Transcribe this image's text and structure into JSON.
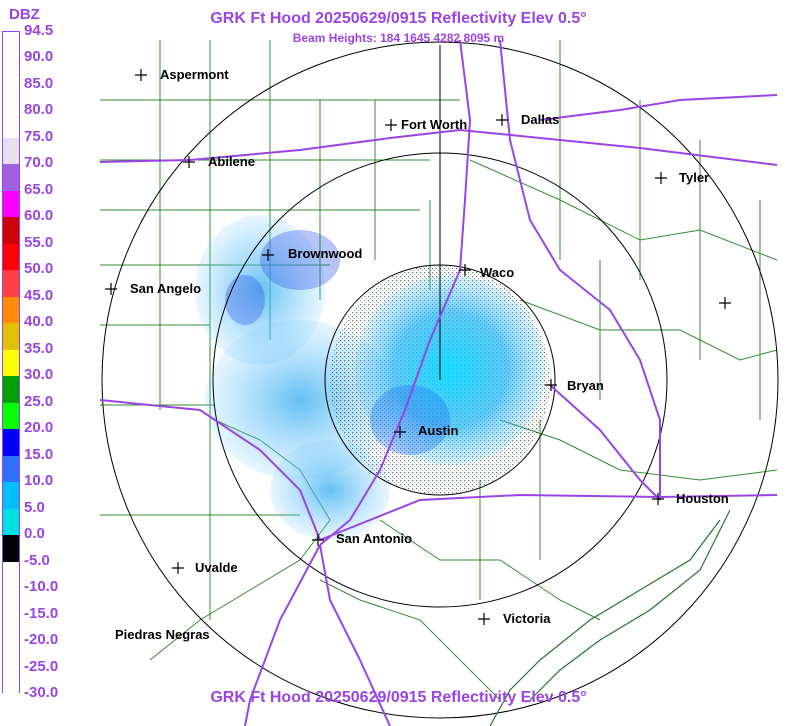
{
  "titles": {
    "top": "GRK Ft Hood 20250629/0915 Reflectivity Elev 0.5°",
    "subtitle": "Beam Heights: 184 1645 4282 8095 m",
    "bottom": "GRK Ft Hood 20250629/0915 Reflectivity Elev 0.5°"
  },
  "legend": {
    "title": "DBZ",
    "labels": [
      "94.5",
      "90.0",
      "85.0",
      "80.0",
      "75.0",
      "70.0",
      "65.0",
      "60.0",
      "55.0",
      "50.0",
      "45.0",
      "40.0",
      "35.0",
      "30.0",
      "25.0",
      "20.0",
      "15.0",
      "10.0",
      "5.0",
      "0.0",
      "-5.0",
      "-10.0",
      "-15.0",
      "-20.0",
      "-25.0",
      "-30.0"
    ],
    "colors": [
      "#ffffff",
      "#ffffff",
      "#ffffff",
      "#ffffff",
      "#e8e0f0",
      "#a060e0",
      "#ff00ff",
      "#cc0000",
      "#ff0000",
      "#ff4040",
      "#ff8c00",
      "#e0c000",
      "#ffff00",
      "#00a000",
      "#00ff00",
      "#0000ff",
      "#3070ff",
      "#00bfff",
      "#00e0e0",
      "#000000",
      "#ffffff",
      "#ffffff",
      "#ffffff",
      "#ffffff",
      "#ffffff"
    ]
  },
  "cities": [
    {
      "name": "Aspermont"
    },
    {
      "name": "Fort Worth"
    },
    {
      "name": "Dallas"
    },
    {
      "name": "Abilene"
    },
    {
      "name": "Tyler"
    },
    {
      "name": "Brownwood"
    },
    {
      "name": "Waco"
    },
    {
      "name": "San Angelo"
    },
    {
      "name": "Bryan"
    },
    {
      "name": "Austin"
    },
    {
      "name": "Houston"
    },
    {
      "name": "San Antonio"
    },
    {
      "name": "Uvalde"
    },
    {
      "name": "Victoria"
    },
    {
      "name": "Piedras Negras"
    }
  ],
  "colors": {
    "title": "#9a44e6",
    "county_lines": "#2f8f2f",
    "highways": "#9a44e6",
    "range_rings": "#000000"
  }
}
